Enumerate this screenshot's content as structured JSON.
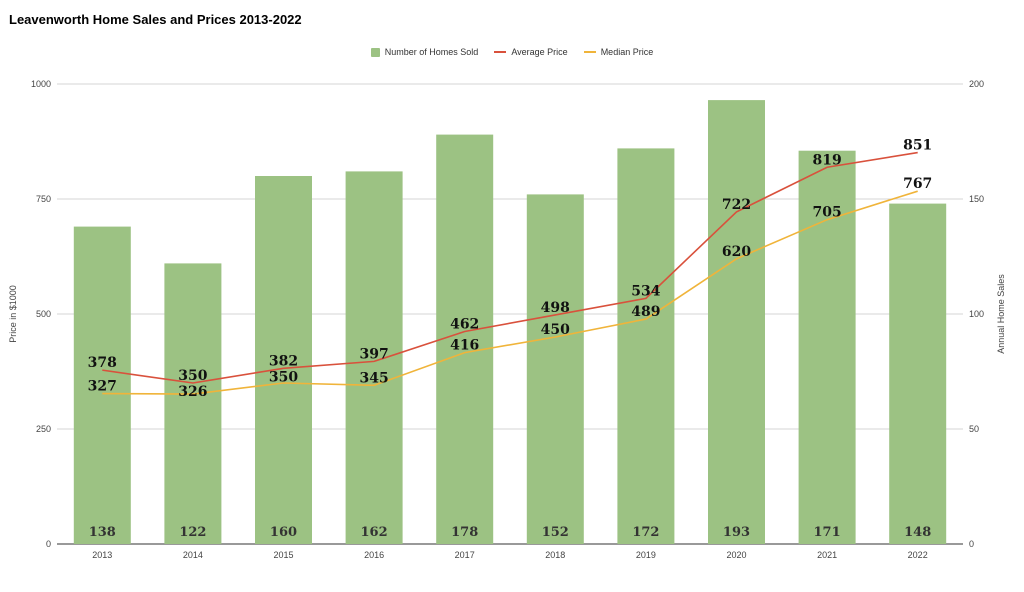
{
  "chart_data": {
    "type": "bar",
    "title": "Leavenworth Home Sales and Prices 2013-2022",
    "categories": [
      "2013",
      "2014",
      "2015",
      "2016",
      "2017",
      "2018",
      "2019",
      "2020",
      "2021",
      "2022"
    ],
    "series": [
      {
        "name": "Number of Homes Sold",
        "type": "bar",
        "axis": "right",
        "color": "#9cc283",
        "values": [
          138,
          122,
          160,
          162,
          178,
          152,
          172,
          193,
          171,
          148
        ]
      },
      {
        "name": "Average Price",
        "type": "line",
        "axis": "left",
        "color": "#d9513c",
        "values": [
          378,
          350,
          382,
          397,
          462,
          498,
          534,
          722,
          819,
          851
        ]
      },
      {
        "name": "Median Price",
        "type": "line",
        "axis": "left",
        "color": "#f0b43a",
        "values": [
          327,
          326,
          350,
          345,
          416,
          450,
          489,
          620,
          705,
          767
        ]
      }
    ],
    "ylabel": "Price in $1000",
    "y2label": "Annual Home Sales",
    "ylim": [
      0,
      1000
    ],
    "y2lim": [
      0,
      200
    ],
    "yticks": [
      "0",
      "250",
      "500",
      "750",
      "1000"
    ],
    "y2ticks": [
      "0",
      "50",
      "100",
      "150",
      "200"
    ],
    "legend_position": "top-center",
    "grid": true
  }
}
